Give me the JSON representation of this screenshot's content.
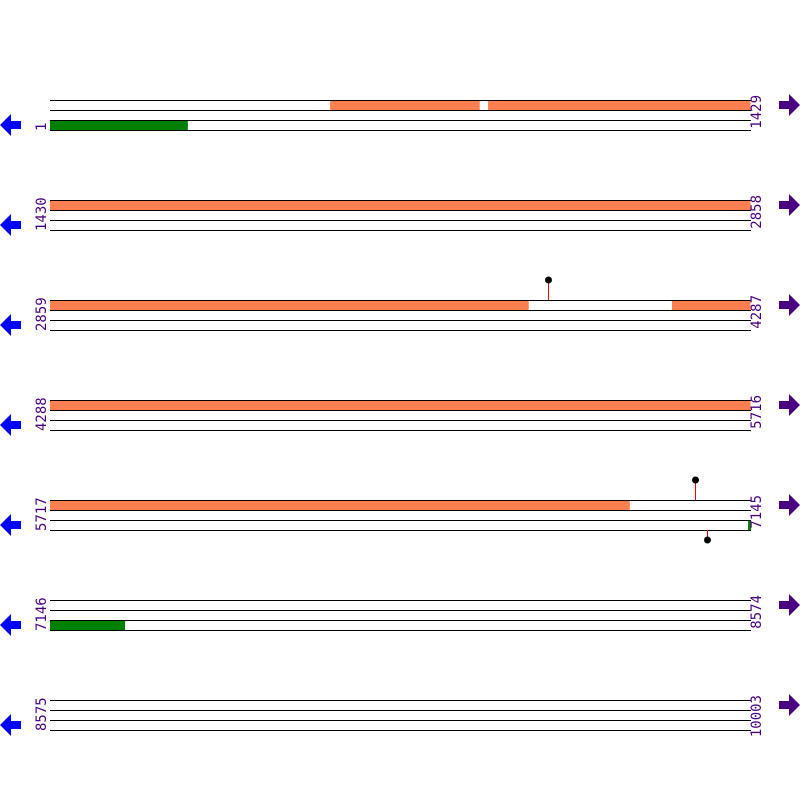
{
  "colors": {
    "forward_feature": "#ff7f50",
    "reverse_feature": "#008000",
    "left_arrow": "#0000ff",
    "right_arrow": "#4b0082",
    "label": "#4b0082",
    "line": "#000000",
    "marker_stem": "#ff0000"
  },
  "rows": [
    {
      "start": 1,
      "end": 1429,
      "forward": [
        [
          572,
          877
        ],
        [
          894,
          1429
        ]
      ],
      "reverse": [
        [
          1,
          282
        ]
      ],
      "markers": []
    },
    {
      "start": 1430,
      "end": 2858,
      "forward": [
        [
          1430,
          2858
        ]
      ],
      "reverse": [],
      "markers": []
    },
    {
      "start": 2859,
      "end": 4287,
      "forward": [
        [
          2859,
          3835
        ],
        [
          4127,
          4287
        ]
      ],
      "reverse": [],
      "markers": [
        {
          "pos": 3874,
          "strand": "forward"
        }
      ]
    },
    {
      "start": 4288,
      "end": 5716,
      "forward": [
        [
          4288,
          5716
        ]
      ],
      "reverse": [],
      "markers": []
    },
    {
      "start": 5717,
      "end": 7145,
      "forward": [
        [
          5717,
          6899
        ]
      ],
      "reverse": [
        [
          7140,
          7145
        ]
      ],
      "markers": [
        {
          "pos": 7032,
          "strand": "forward"
        },
        {
          "pos": 7056,
          "strand": "reverse"
        }
      ]
    },
    {
      "start": 7146,
      "end": 8574,
      "forward": [],
      "reverse": [
        [
          7146,
          7299
        ]
      ],
      "markers": []
    },
    {
      "start": 8575,
      "end": 10003,
      "forward": [],
      "reverse": [],
      "markers": []
    }
  ]
}
